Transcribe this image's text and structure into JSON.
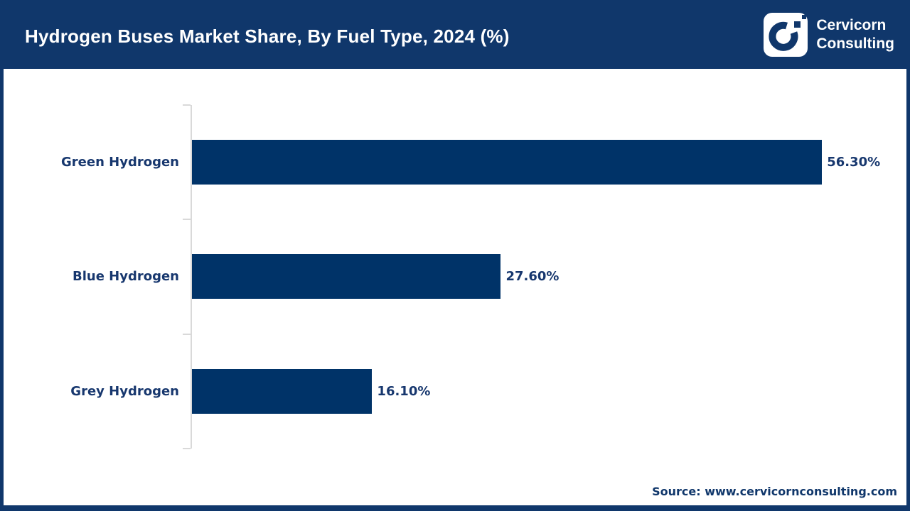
{
  "header": {
    "title": "Hydrogen Buses Market Share, By Fuel Type, 2024 (%)"
  },
  "brand": {
    "name_line1": "Cervicorn",
    "name_line2": "Consulting",
    "logo_icon": "cervicorn-c-mark"
  },
  "footer": {
    "source": "Source: www.cervicornconsulting.com"
  },
  "colors": {
    "header_navy": "#10376B",
    "bar_navy": "#003368",
    "label_navy": "#17376E",
    "axis_grey": "#D9D9D9",
    "background": "#FFFFFF"
  },
  "chart_data": {
    "type": "bar",
    "orientation": "horizontal",
    "title": "Hydrogen Buses Market Share, By Fuel Type, 2024 (%)",
    "categories": [
      "Green Hydrogen",
      "Blue Hydrogen",
      "Grey Hydrogen"
    ],
    "values": [
      56.3,
      27.6,
      16.1
    ],
    "value_labels": [
      "56.30%",
      "27.60%",
      "16.10%"
    ],
    "xlabel": "",
    "ylabel": "",
    "xlim": [
      0,
      63.4
    ],
    "grid": false,
    "legend": false,
    "bar_color": "#003368",
    "source": "Source: www.cervicornconsulting.com"
  }
}
